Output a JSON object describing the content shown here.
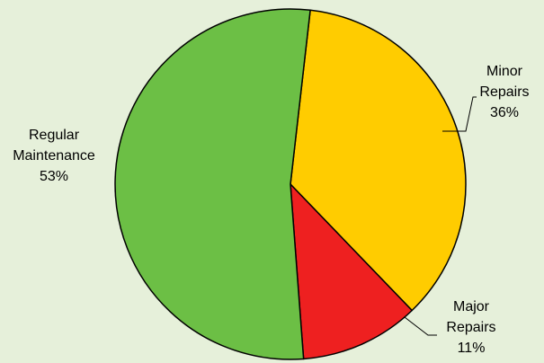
{
  "chart_data": {
    "type": "pie",
    "title": "",
    "slices": [
      {
        "category_lines": [
          "Minor",
          "Repairs"
        ],
        "percent_label": "36%",
        "value": 36,
        "color": "#ffcc00"
      },
      {
        "category_lines": [
          "Major",
          "Repairs"
        ],
        "percent_label": "11%",
        "value": 11,
        "color": "#ee2020"
      },
      {
        "category_lines": [
          "Regular",
          "Maintenance"
        ],
        "percent_label": "53%",
        "value": 53,
        "color": "#6cbf45"
      }
    ],
    "start_angle_deg": 6.5,
    "direction": "clockwise",
    "slice_outline_color": "#000000",
    "background_color": "#e6f0da"
  }
}
